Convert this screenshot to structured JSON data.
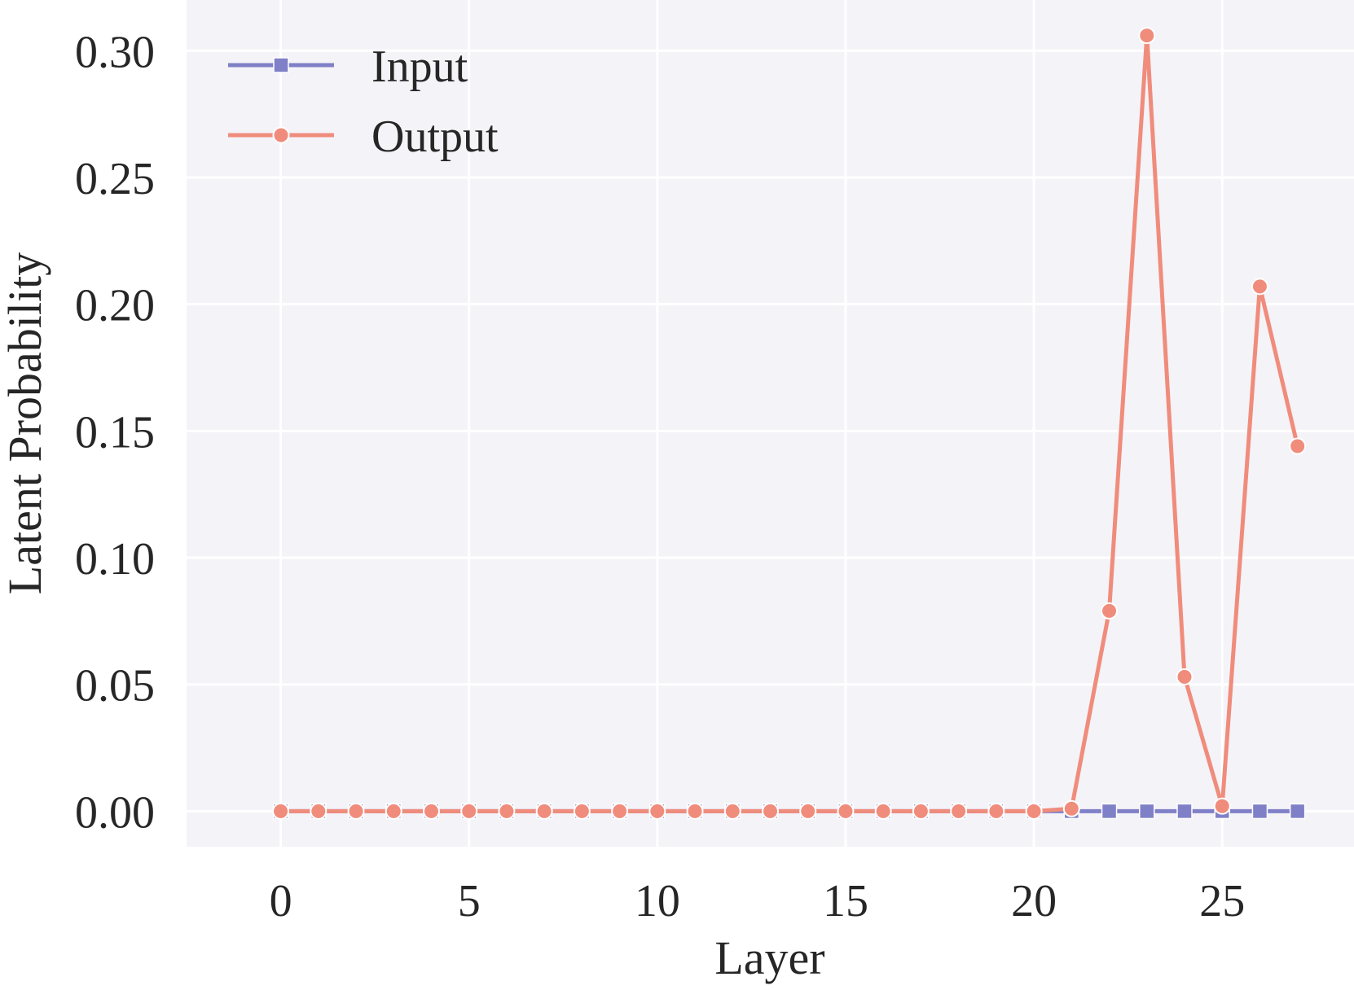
{
  "chart_data": {
    "type": "line",
    "title": "",
    "xlabel": "Layer",
    "ylabel": "Latent Probability",
    "xlim": [
      -2.5,
      28.5
    ],
    "ylim": [
      -0.014,
      0.32
    ],
    "xticks": [
      0,
      5,
      10,
      15,
      20,
      25
    ],
    "xtick_labels": [
      "0",
      "5",
      "10",
      "15",
      "20",
      "25"
    ],
    "yticks": [
      0.0,
      0.05,
      0.1,
      0.15,
      0.2,
      0.25,
      0.3
    ],
    "ytick_labels": [
      "0.00",
      "0.05",
      "0.10",
      "0.15",
      "0.20",
      "0.25",
      "0.30"
    ],
    "grid": true,
    "legend_position": "top-left",
    "background": "#f4f3f8",
    "x": [
      0,
      1,
      2,
      3,
      4,
      5,
      6,
      7,
      8,
      9,
      10,
      11,
      12,
      13,
      14,
      15,
      16,
      17,
      18,
      19,
      20,
      21,
      22,
      23,
      24,
      25,
      26,
      27
    ],
    "series": [
      {
        "name": "Input",
        "color": "#8080c8",
        "marker": "square",
        "values": [
          0,
          0,
          0,
          0,
          0,
          0,
          0,
          0,
          0,
          0,
          0,
          0,
          0,
          0,
          0,
          0,
          0,
          0,
          0,
          0,
          0,
          0,
          0,
          0,
          0,
          0,
          0,
          0
        ]
      },
      {
        "name": "Output",
        "color": "#f08c7c",
        "marker": "circle",
        "values": [
          0,
          0,
          0,
          0,
          0,
          0,
          0,
          0,
          0,
          0,
          0,
          0,
          0,
          0,
          0,
          0,
          0,
          0,
          0,
          0,
          0,
          0.001,
          0.079,
          0.306,
          0.053,
          0.002,
          0.207,
          0.144
        ]
      }
    ]
  }
}
